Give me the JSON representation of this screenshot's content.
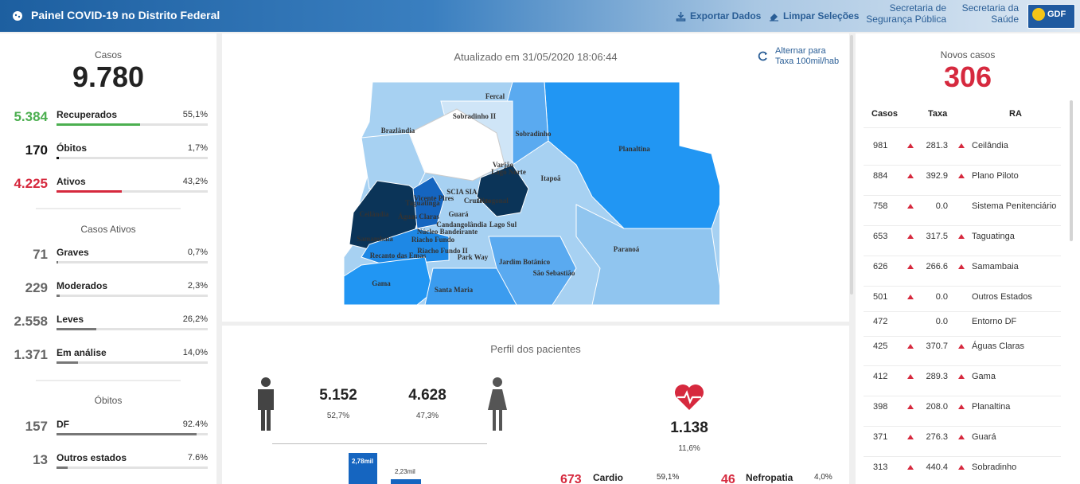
{
  "header": {
    "title": "Painel COVID-19 no Distrito Federal",
    "export_label": "Exportar Dados",
    "clear_label": "Limpar Seleções",
    "link1_line1": "Secretaria de",
    "link1_line2": "Segurança Pública",
    "link2_line1": "Secretaria da",
    "link2_line2": "Saúde",
    "logo_text": "GDF"
  },
  "summary": {
    "cases_label": "Casos",
    "cases_value": "9.780",
    "rows": [
      {
        "value": "5.384",
        "label": "Recuperados",
        "pct": "55,1%",
        "fraction": 0.551,
        "color": "#4caf50"
      },
      {
        "value": "170",
        "label": "Óbitos",
        "pct": "1,7%",
        "fraction": 0.017,
        "color": "#111111"
      },
      {
        "value": "4.225",
        "label": "Ativos",
        "pct": "43,2%",
        "fraction": 0.432,
        "color": "#d6293e"
      }
    ],
    "active_label": "Casos Ativos",
    "active_rows": [
      {
        "value": "71",
        "label": "Graves",
        "pct": "0,7%",
        "fraction": 0.007
      },
      {
        "value": "229",
        "label": "Moderados",
        "pct": "2,3%",
        "fraction": 0.023
      },
      {
        "value": "2.558",
        "label": "Leves",
        "pct": "26,2%",
        "fraction": 0.262
      },
      {
        "value": "1.371",
        "label": "Em análise",
        "pct": "14,0%",
        "fraction": 0.14
      }
    ],
    "deaths_label": "Óbitos",
    "death_rows": [
      {
        "value": "157",
        "label": "DF",
        "pct": "92.4%",
        "fraction": 0.924
      },
      {
        "value": "13",
        "label": "Outros estados",
        "pct": "7.6%",
        "fraction": 0.076
      }
    ]
  },
  "map": {
    "updated": "Atualizado em 31/05/2020 18:06:44",
    "toggle_line1": "Alternar para",
    "toggle_line2": "Taxa 100mil/hab",
    "labels": [
      "Fercal",
      "Sobradinho II",
      "Brazlândia",
      "Sobradinho",
      "Planaltina",
      "Varjão",
      "Lago Norte",
      "Itapoã",
      "SCIA",
      "SIA",
      "Taguatinga",
      "Ceilândia",
      "Vicente Pires",
      "Guará",
      "Cruzeiro",
      "Octogonal",
      "Águas Claras",
      "Candangolândia",
      "Lago Sul",
      "Núcleo Bandeirante",
      "Samambaia",
      "Riacho Fundo",
      "Riacho Fundo II",
      "Recanto das Emas",
      "Park Way",
      "Jardim Botânico",
      "São Sebastião",
      "Paranoá",
      "Gama",
      "Santa Maria"
    ]
  },
  "perfil": {
    "title": "Perfil dos pacientes",
    "male_value": "5.152",
    "male_pct": "52,7%",
    "female_value": "4.628",
    "female_pct": "47,3%",
    "bar1_label": "2,78mil",
    "bar2_label": "2,23mil",
    "comorbid_value": "1.138",
    "comorbid_pct": "11,6%",
    "cardio_value": "673",
    "cardio_label": "Cardio",
    "cardio_pct": "59,1%",
    "nefro_value": "46",
    "nefro_label": "Nefropatia",
    "nefro_pct": "4,0%"
  },
  "novos": {
    "label": "Novos casos",
    "value": "306",
    "col_casos": "Casos",
    "col_taxa": "Taxa",
    "col_ra": "RA",
    "rows": [
      {
        "casos": "981",
        "taxa": "281.3",
        "ra": "Ceilândia",
        "arrow2": true
      },
      {
        "casos": "884",
        "taxa": "392.9",
        "ra": "Plano Piloto",
        "arrow2": true
      },
      {
        "casos": "758",
        "taxa": "0.0",
        "ra": "Sistema Penitenciário",
        "arrow2": false
      },
      {
        "casos": "653",
        "taxa": "317.5",
        "ra": "Taguatinga",
        "arrow2": true
      },
      {
        "casos": "626",
        "taxa": "266.6",
        "ra": "Samambaia",
        "arrow2": true
      },
      {
        "casos": "501",
        "taxa": "0.0",
        "ra": "Outros Estados",
        "arrow2": false
      },
      {
        "casos": "472",
        "taxa": "0.0",
        "ra": "Entorno DF",
        "arrow2": false
      },
      {
        "casos": "425",
        "taxa": "370.7",
        "ra": "Águas Claras",
        "arrow2": true
      },
      {
        "casos": "412",
        "taxa": "289.3",
        "ra": "Gama",
        "arrow2": true
      },
      {
        "casos": "398",
        "taxa": "208.0",
        "ra": "Planaltina",
        "arrow2": true
      },
      {
        "casos": "371",
        "taxa": "276.3",
        "ra": "Guará",
        "arrow2": true
      },
      {
        "casos": "313",
        "taxa": "440.4",
        "ra": "Sobradinho",
        "arrow2": true
      }
    ]
  }
}
